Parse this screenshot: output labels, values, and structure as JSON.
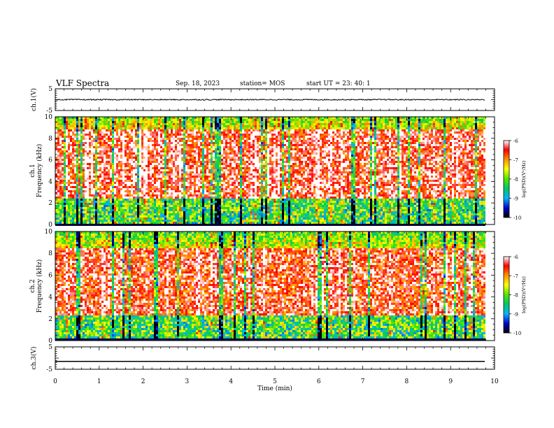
{
  "header": {
    "title": "VLF Spectra",
    "date": "Sep. 18, 2023",
    "station": "station= MOS",
    "start": "start  UT =   23: 40: 1"
  },
  "chart_data": [
    {
      "type": "line",
      "panel": "ch1-waveform",
      "ylabel": "ch.1(V)",
      "ylim": [
        -5,
        5
      ],
      "yticks": [
        "5",
        "-5"
      ],
      "xlim": [
        0,
        10
      ],
      "series": [
        {
          "baseline": 0.0,
          "noise_amplitude": 0.25
        }
      ]
    },
    {
      "type": "heatmap",
      "panel": "ch1-spectrogram",
      "ylabel_top": "ch.1",
      "ylabel": "Frequency (kHz)",
      "ylim": [
        0,
        10
      ],
      "yticks": [
        "0",
        "2",
        "4",
        "6",
        "8",
        "10"
      ],
      "xlim": [
        0,
        9.85
      ],
      "colorbar": {
        "label": "log(PSD)(V²/Hz)",
        "range": [
          -10,
          -6
        ],
        "ticks": [
          "-6",
          "-7",
          "-8",
          "-9",
          "-10"
        ]
      },
      "dominant_band_khz": [
        2.5,
        9.0
      ],
      "peak_level": -6.5
    },
    {
      "type": "heatmap",
      "panel": "ch2-spectrogram",
      "ylabel_top": "ch.2",
      "ylabel": "Frequency (kHz)",
      "ylim": [
        0,
        10
      ],
      "yticks": [
        "0",
        "2",
        "4",
        "6",
        "8",
        "10"
      ],
      "xlim": [
        0,
        9.85
      ],
      "colorbar": {
        "label": "log(PSD)(V²/Hz)",
        "range": [
          -10,
          -6
        ],
        "ticks": [
          "-6",
          "-7",
          "-8",
          "-9",
          "-10"
        ]
      },
      "dominant_band_khz": [
        2.5,
        8.5
      ],
      "peak_level": -6.6
    },
    {
      "type": "line",
      "panel": "ch3-waveform",
      "ylabel": "ch.3(V)",
      "ylim": [
        -5,
        5
      ],
      "yticks": [
        "5",
        "-5"
      ],
      "xlim": [
        0,
        10
      ],
      "xlabel": "Time (min)",
      "xticks": [
        "0",
        "1",
        "2",
        "3",
        "4",
        "5",
        "6",
        "7",
        "8",
        "9",
        "10"
      ],
      "series": [
        {
          "baseline": -1.5,
          "noise_amplitude": 0.0
        }
      ]
    }
  ]
}
